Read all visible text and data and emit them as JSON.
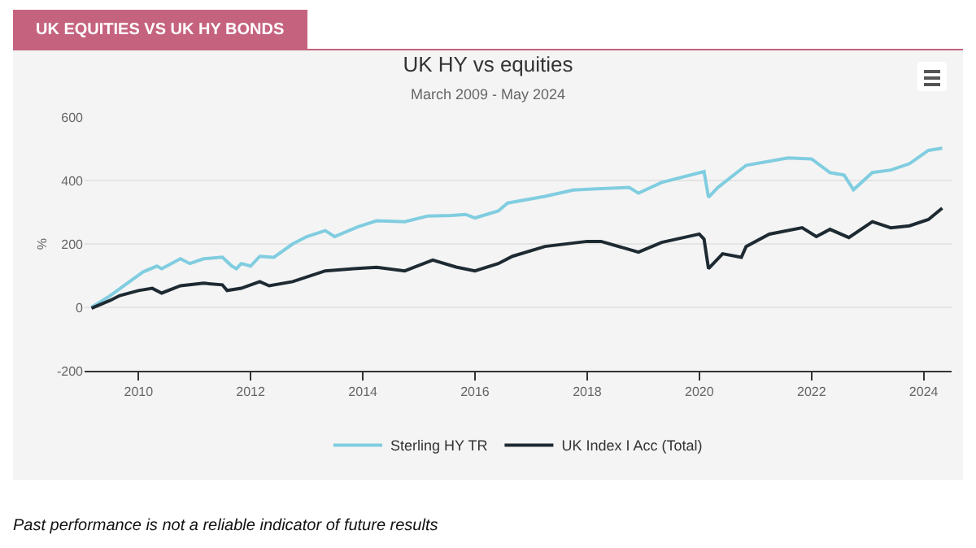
{
  "chart_data": {
    "type": "line",
    "title": "UK HY vs equities",
    "subtitle": "March 2009 - May 2024",
    "ylabel": "%",
    "annotations": [
      "UK EQUITIES VS UK HY BONDS",
      "Past performance is not a reliable indicator of future results"
    ],
    "xlim": [
      "2009-01-15",
      "2024-07-01"
    ],
    "xticks": [
      {
        "value": "2010-01-01",
        "label": "2010"
      },
      {
        "value": "2012-01-01",
        "label": "2012"
      },
      {
        "value": "2014-01-01",
        "label": "2014"
      },
      {
        "value": "2016-01-01",
        "label": "2016"
      },
      {
        "value": "2018-01-01",
        "label": "2018"
      },
      {
        "value": "2020-01-01",
        "label": "2020"
      },
      {
        "value": "2022-01-01",
        "label": "2022"
      },
      {
        "value": "2024-01-01",
        "label": "2024"
      }
    ],
    "ylim": [
      -200,
      600
    ],
    "yticks": [
      -200,
      0,
      200,
      400,
      600
    ],
    "grid": "y",
    "legend": "bottom",
    "marker": "none",
    "line_style": "solid",
    "series": [
      {
        "name": "Sterling HY TR",
        "color": "#80cde0",
        "x": [
          "2009-03",
          "2009-07",
          "2009-12",
          "2010-02",
          "2010-05",
          "2010-06",
          "2010-10",
          "2010-12",
          "2011-03",
          "2011-07",
          "2011-09",
          "2011-10",
          "2011-11",
          "2012-01",
          "2012-03",
          "2012-06",
          "2012-10",
          "2013-01",
          "2013-05",
          "2013-07",
          "2013-12",
          "2014-04",
          "2014-10",
          "2015-03",
          "2015-08",
          "2015-11",
          "2016-01",
          "2016-06",
          "2016-08",
          "2017-04",
          "2017-10",
          "2018-03",
          "2018-10",
          "2018-12",
          "2019-05",
          "2020-02",
          "2020-03",
          "2020-05",
          "2020-11",
          "2021-08",
          "2022-01",
          "2022-05",
          "2022-08",
          "2022-10",
          "2023-02",
          "2023-06",
          "2023-10",
          "2024-02",
          "2024-05"
        ],
        "values": [
          0,
          37,
          91,
          112,
          130,
          122,
          153,
          138,
          153,
          158,
          130,
          122,
          138,
          130,
          161,
          158,
          200,
          223,
          242,
          223,
          254,
          273,
          270,
          288,
          290,
          293,
          282,
          304,
          329,
          350,
          370,
          374,
          378,
          360,
          394,
          428,
          347,
          378,
          448,
          471,
          468,
          425,
          417,
          371,
          425,
          433,
          453,
          495,
          502
        ]
      },
      {
        "name": "UK Index I Acc (Total)",
        "color": "#1e2a32",
        "x": [
          "2009-03",
          "2009-07",
          "2009-09",
          "2010-01",
          "2010-04",
          "2010-06",
          "2010-10",
          "2011-03",
          "2011-07",
          "2011-08",
          "2011-11",
          "2012-03",
          "2012-05",
          "2012-10",
          "2013-05",
          "2013-11",
          "2014-04",
          "2014-10",
          "2015-04",
          "2015-09",
          "2016-01",
          "2016-06",
          "2016-09",
          "2017-04",
          "2018-01",
          "2018-04",
          "2018-12",
          "2019-05",
          "2020-01",
          "2020-02",
          "2020-03",
          "2020-06",
          "2020-10",
          "2020-11",
          "2021-04",
          "2021-11",
          "2022-02",
          "2022-05",
          "2022-09",
          "2023-02",
          "2023-06",
          "2023-10",
          "2024-02",
          "2024-05"
        ],
        "values": [
          -3,
          22,
          37,
          53,
          60,
          45,
          68,
          76,
          71,
          53,
          60,
          81,
          68,
          81,
          115,
          122,
          126,
          115,
          149,
          127,
          115,
          138,
          161,
          192,
          208,
          208,
          174,
          205,
          231,
          215,
          122,
          169,
          158,
          192,
          231,
          251,
          223,
          246,
          220,
          270,
          251,
          257,
          277,
          313
        ]
      }
    ]
  }
}
